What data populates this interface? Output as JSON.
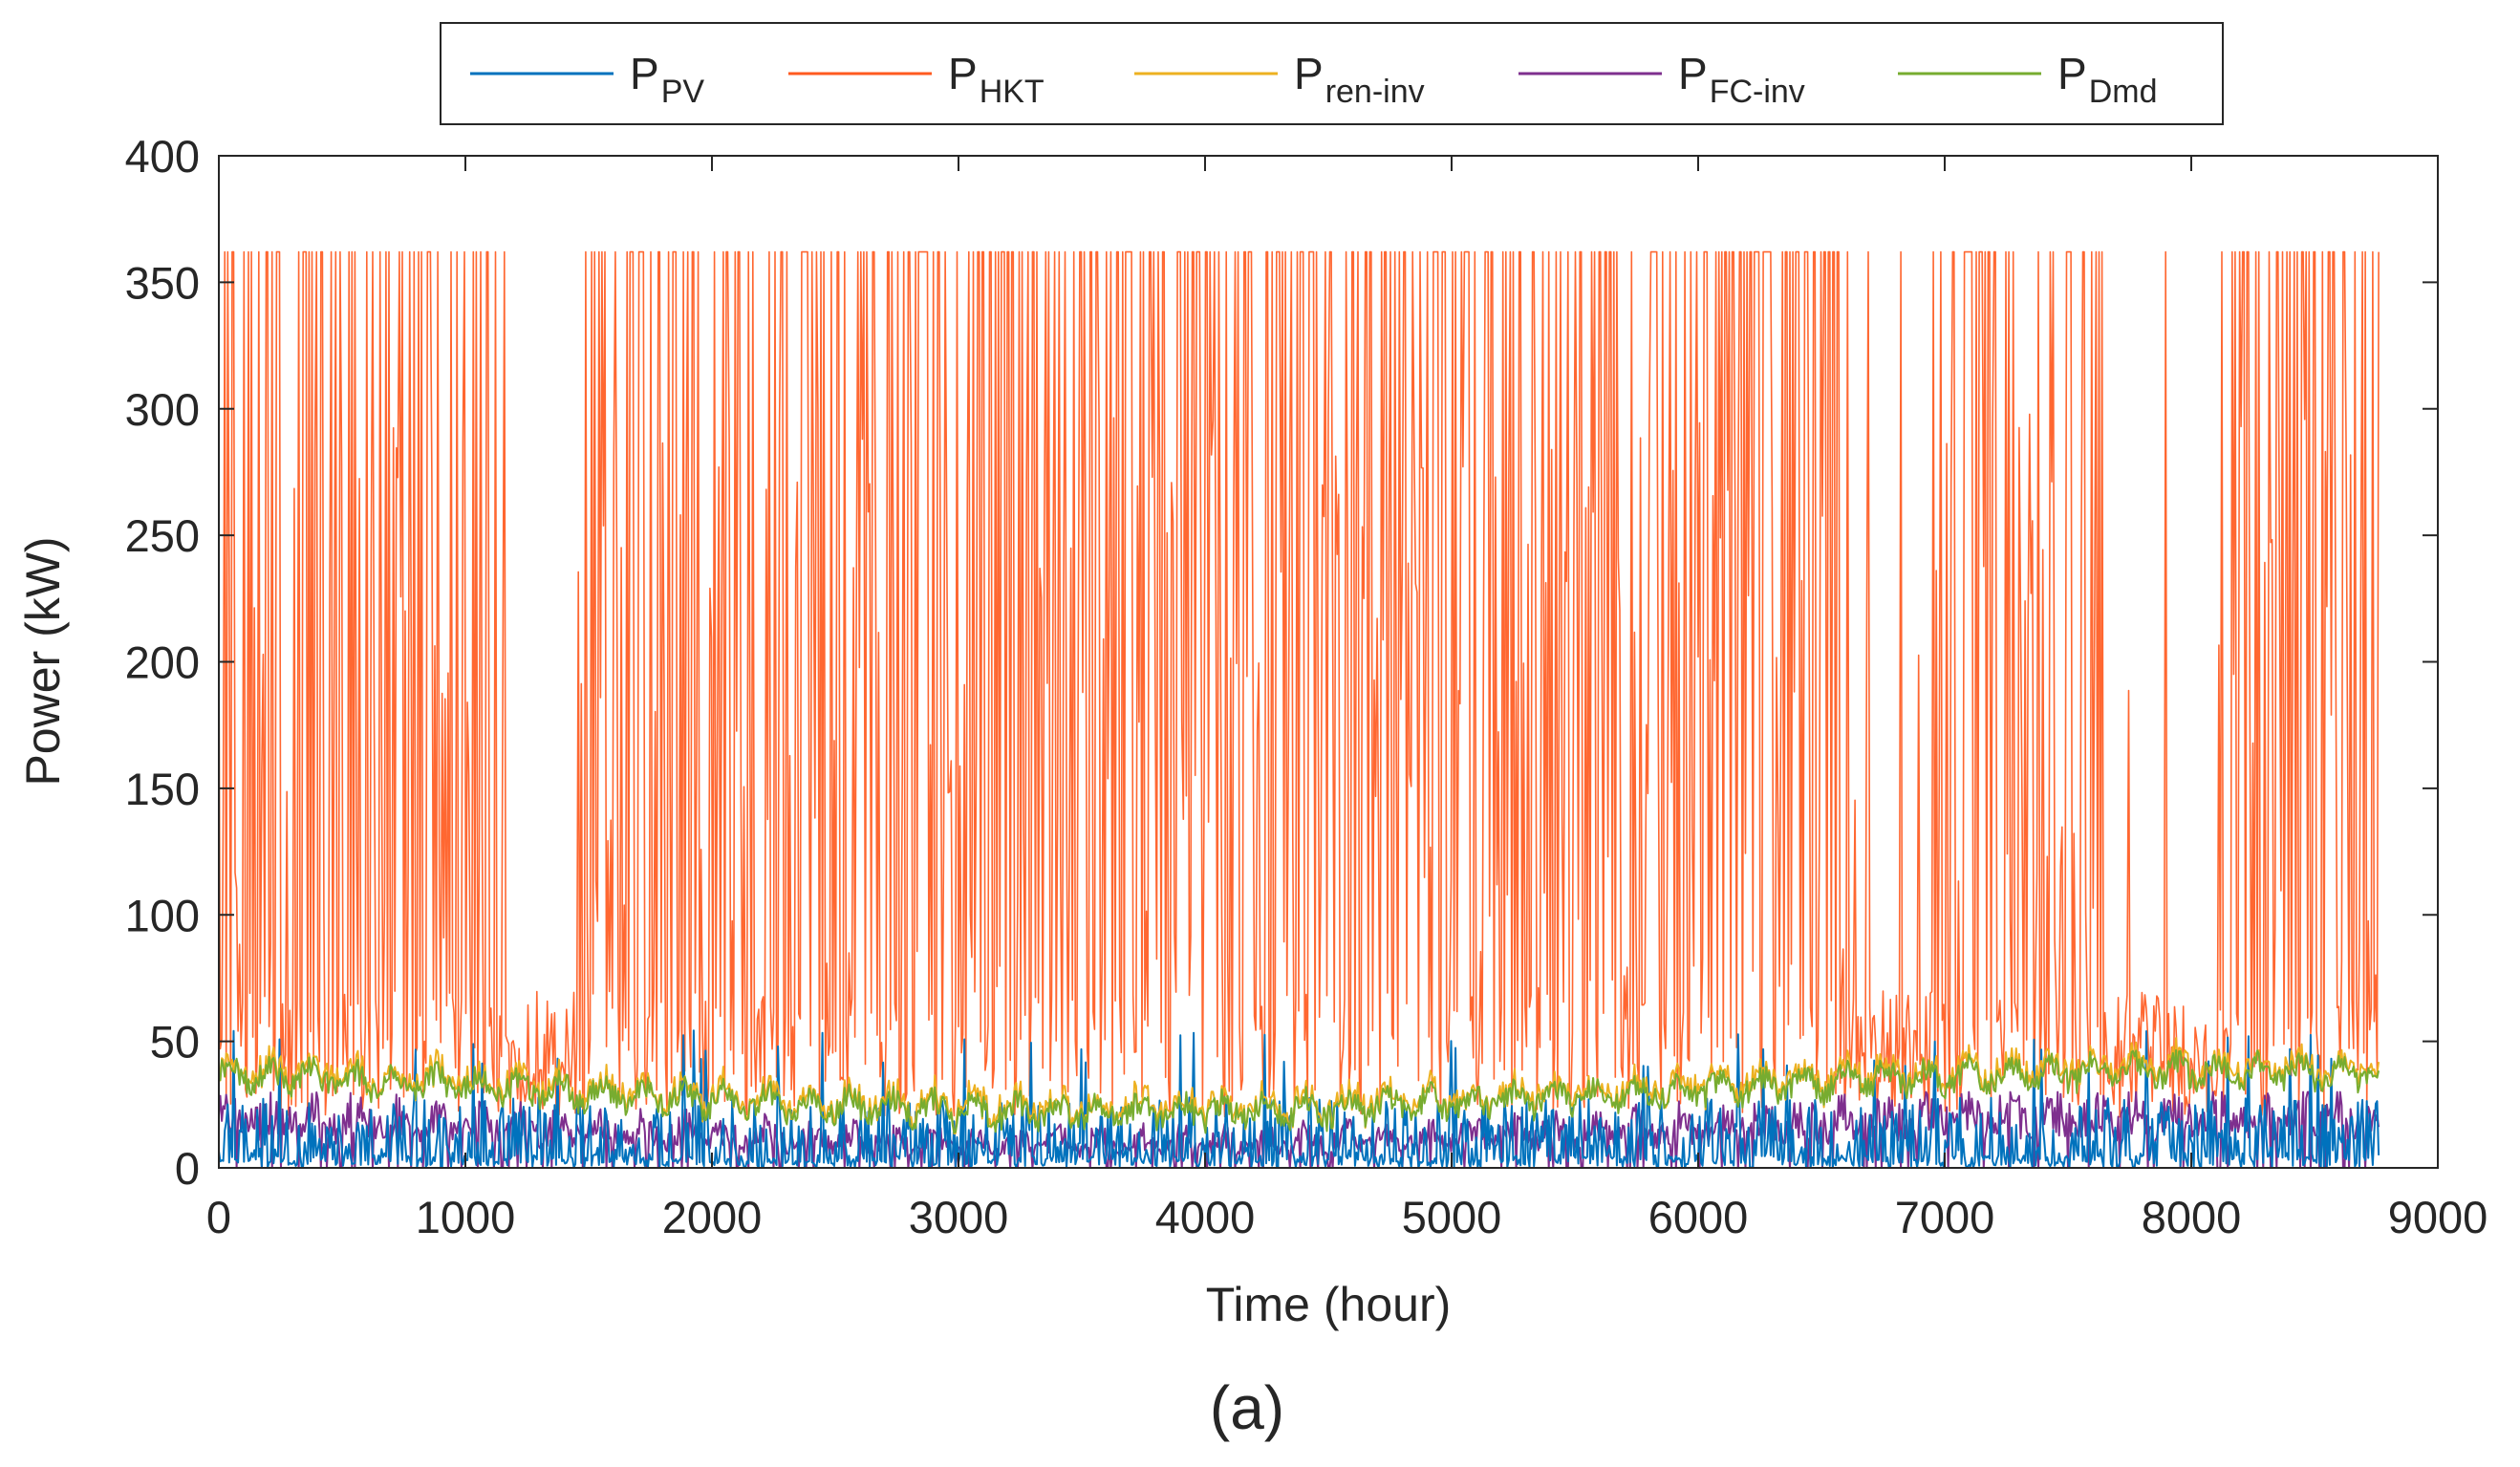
{
  "chart_data": {
    "type": "line",
    "title": "",
    "xlabel": "Time (hour)",
    "ylabel": "Power (kW)",
    "xlim": [
      0,
      9000
    ],
    "ylim": [
      0,
      400
    ],
    "xticks": [
      0,
      1000,
      2000,
      3000,
      4000,
      5000,
      6000,
      7000,
      8000,
      9000
    ],
    "yticks": [
      0,
      50,
      100,
      150,
      200,
      250,
      300,
      350,
      400
    ],
    "grid": false,
    "legend_position": "top-center",
    "n_hours": 8760,
    "series": [
      {
        "key": "ppv",
        "name": "P",
        "subscript": "PV",
        "color": "#0072BD",
        "note": "hourly photovoltaic output, mostly 0-30 kW with spikes near 40-55 kW",
        "typical_max": 30,
        "peak": 55
      },
      {
        "key": "phkt",
        "name": "P",
        "subscript": "HKT",
        "color": "#FF5A1F",
        "note": "hydrokinetic turbine output, frequently saturating at rated power",
        "rated": 362,
        "secondary_peaks": [
          280,
          282,
          215
        ]
      },
      {
        "key": "preninv",
        "name": "P",
        "subscript": "ren-inv",
        "color": "#EDB120",
        "note": "renewable inverter output following demand envelope",
        "range": [
          20,
          50
        ]
      },
      {
        "key": "pfcinv",
        "name": "P",
        "subscript": "FC-inv",
        "color": "#7E2F8E",
        "note": "fuel-cell inverter output",
        "range": [
          0,
          30
        ]
      },
      {
        "key": "pdmd",
        "name": "P",
        "subscript": "Dmd",
        "color": "#77AC30",
        "note": "hourly load demand with seasonal swing",
        "range": [
          18,
          48
        ]
      }
    ]
  },
  "figure_label": "(a)"
}
